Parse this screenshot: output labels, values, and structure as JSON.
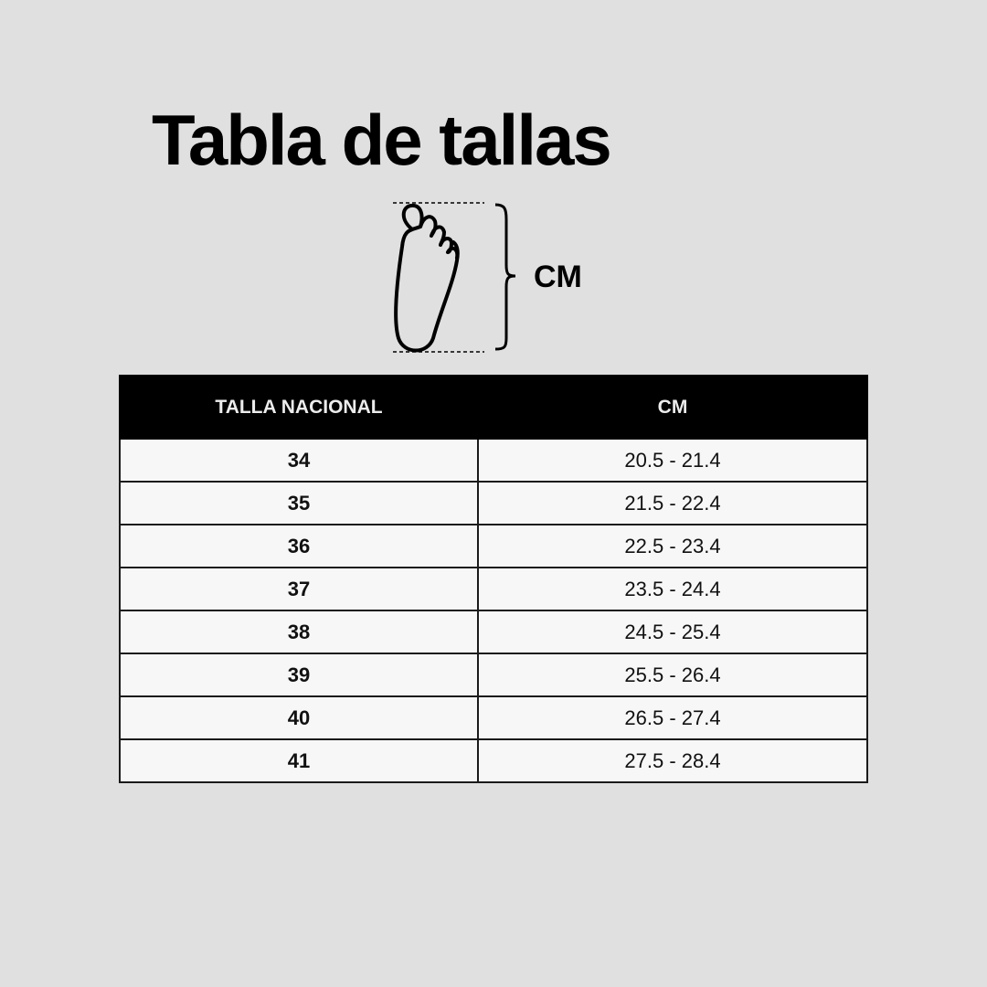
{
  "title": "Tabla de tallas",
  "diagram": {
    "icon": "foot-length-icon",
    "unit_label": "CM"
  },
  "table": {
    "headers": [
      "TALLA NACIONAL",
      "CM"
    ],
    "rows": [
      {
        "size": "34",
        "cm": "20.5 - 21.4"
      },
      {
        "size": "35",
        "cm": "21.5 - 22.4"
      },
      {
        "size": "36",
        "cm": "22.5 - 23.4"
      },
      {
        "size": "37",
        "cm": "23.5 - 24.4"
      },
      {
        "size": "38",
        "cm": "24.5 - 25.4"
      },
      {
        "size": "39",
        "cm": "25.5 - 26.4"
      },
      {
        "size": "40",
        "cm": "26.5 - 27.4"
      },
      {
        "size": "41",
        "cm": "27.5 - 28.4"
      }
    ]
  },
  "colors": {
    "background": "#e0e0e0",
    "header": "#000000",
    "cell": "#f8f7f7"
  }
}
